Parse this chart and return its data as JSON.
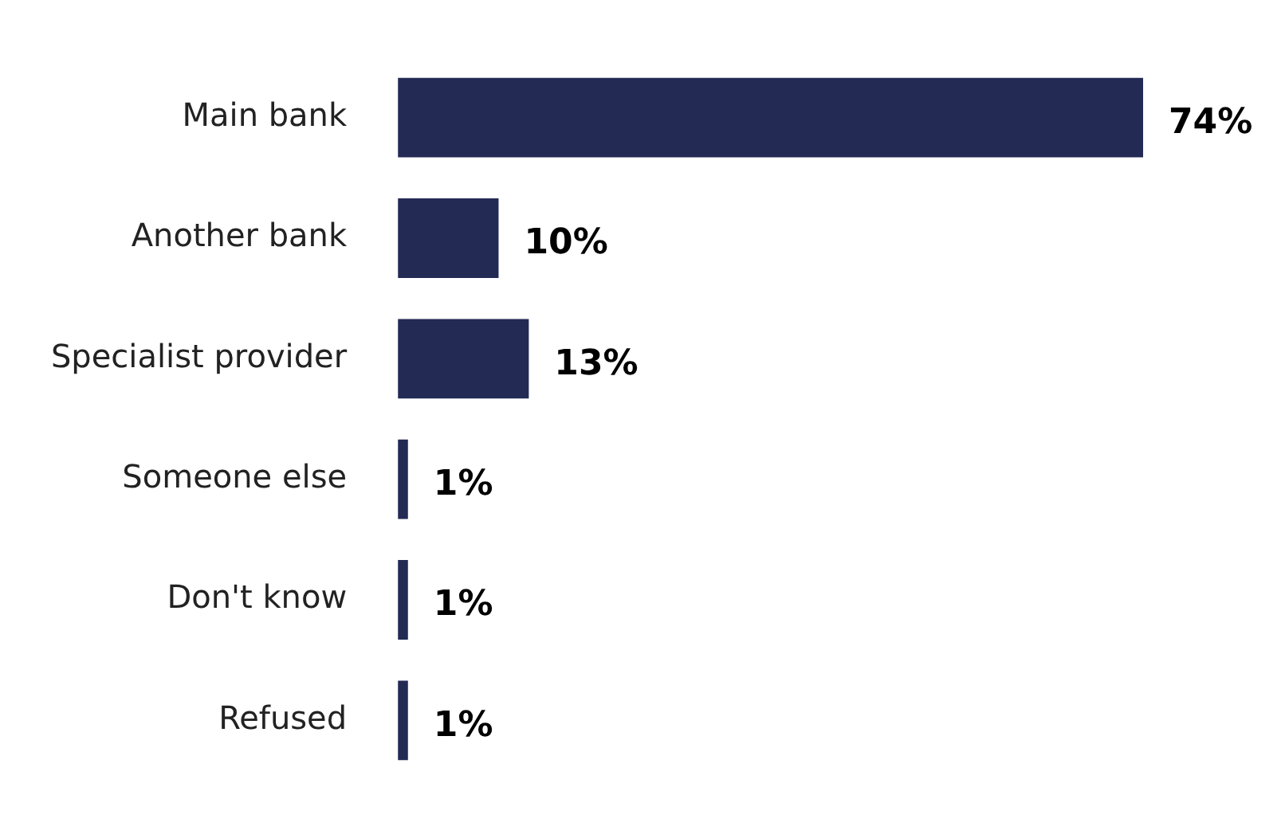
{
  "chart_data": {
    "type": "bar",
    "orientation": "horizontal",
    "categories": [
      "Main bank",
      "Another bank",
      "Specialist provider",
      "Someone else",
      "Don't know",
      "Refused"
    ],
    "values": [
      74,
      10,
      13,
      1,
      1,
      1
    ],
    "color": "#232a54",
    "value_labels": [
      "74%",
      "10%",
      "13%",
      "1%",
      "1%",
      "1%"
    ],
    "legend": false,
    "tick_labels": "y"
  }
}
